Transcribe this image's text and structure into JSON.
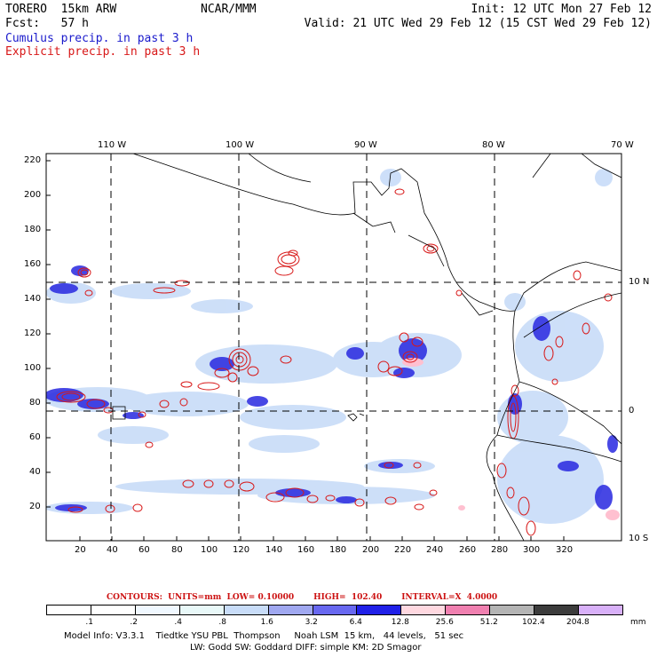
{
  "header": {
    "model": "TORERO  15km ARW",
    "org": "NCAR/MMM",
    "init": "Init: 12 UTC Mon 27 Feb 12",
    "fcst": "Fcst:   57 h",
    "valid": "Valid: 21 UTC Wed 29 Feb 12 (15 CST Wed 29 Feb 12)",
    "legend_cumulus": "Cumulus precip. in past 3 h",
    "legend_explicit": "Explicit precip. in past 3 h"
  },
  "map": {
    "lon_labels": [
      "110 W",
      "100 W",
      "90 W",
      "80 W",
      "70 W"
    ],
    "lat_labels": [
      "10 N",
      "0",
      "10 S"
    ],
    "y_ticks": [
      "220",
      "200",
      "180",
      "160",
      "140",
      "120",
      "100",
      "80",
      "60",
      "40",
      "20"
    ],
    "x_ticks": [
      "20",
      "40",
      "60",
      "80",
      "100",
      "120",
      "140",
      "160",
      "180",
      "200",
      "220",
      "240",
      "260",
      "280",
      "300",
      "320"
    ]
  },
  "contours_line": "CONTOURS:  UNITS=mm  LOW= 0.10000       HIGH=  102.40       INTERVAL=X  4.0000",
  "colorbar": {
    "labels": [
      ".1",
      ".2",
      ".4",
      ".8",
      "1.6",
      "3.2",
      "6.4",
      "12.8",
      "25.6",
      "51.2",
      "102.4",
      "204.8"
    ],
    "unit": "mm",
    "colors": [
      "#ffffff",
      "#ffffff",
      "#f0f8ff",
      "#e8f8f8",
      "#c8dcf8",
      "#a0a8f0",
      "#6868f0",
      "#2020e8",
      "#ffd8e0",
      "#f080b0",
      "#b4b4b4",
      "#3c3c3c",
      "#d8b0f8"
    ]
  },
  "footer": {
    "line1": "Model Info: V3.3.1    Tiedtke YSU PBL  Thompson     Noah LSM  15 km,   44 levels,   51 sec",
    "line2": "LW: Godd SW: Goddard DIFF: simple KM: 2D Smagor"
  }
}
